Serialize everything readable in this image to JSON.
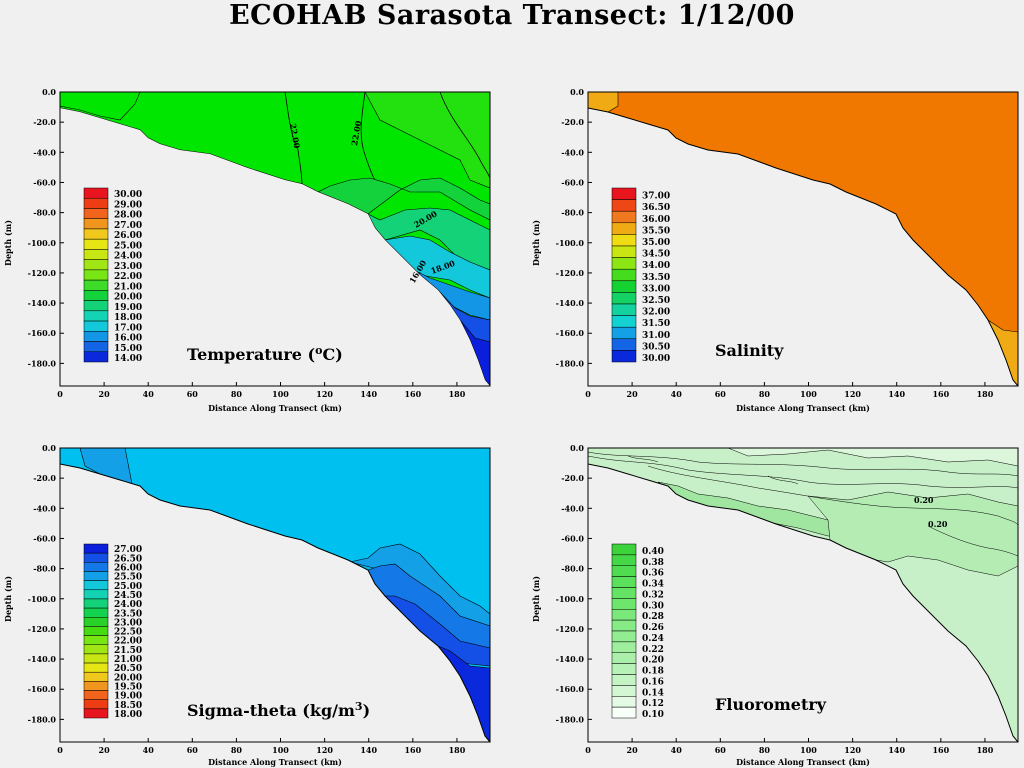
{
  "title": "ECOHAB Sarasota Transect: 1/12/00",
  "chart_data": [
    {
      "type": "heatmap",
      "title": "Temperature (oC)",
      "title_main": "Temperature (",
      "title_sup": "o",
      "title_tail": "C)",
      "xlabel": "Distance Along Transect (km)",
      "ylabel": "Depth (m)",
      "xlim": [
        0,
        195
      ],
      "ylim": [
        -195,
        0
      ],
      "xticks": [
        "0",
        "20",
        "40",
        "60",
        "80",
        "100",
        "120",
        "140",
        "160",
        "180"
      ],
      "yticks": [
        "0.0",
        "-20.0",
        "-40.0",
        "-60.0",
        "-80.0",
        "-100.0",
        "-120.0",
        "-140.0",
        "-160.0",
        "-180.0"
      ],
      "legend_levels": [
        "30.00",
        "29.00",
        "28.00",
        "27.00",
        "26.00",
        "25.00",
        "24.00",
        "23.00",
        "22.00",
        "21.00",
        "20.00",
        "19.00",
        "18.00",
        "17.00",
        "16.00",
        "15.00",
        "14.00"
      ],
      "legend_colors": [
        "#e8141e",
        "#ee3c14",
        "#f0641e",
        "#f0961e",
        "#f0c81e",
        "#e6e614",
        "#c8e614",
        "#a0e614",
        "#78e614",
        "#3cdc28",
        "#14d23c",
        "#14d278",
        "#14d2b4",
        "#14c8dc",
        "#1496e6",
        "#1464e6",
        "#0a28dc"
      ],
      "contour_labels": [
        "22.00",
        "22.00",
        "20.00",
        "18.00",
        "16.00"
      ],
      "colors": {
        "base": "#00e600",
        "light": "#78e632",
        "mid": "#14c83c",
        "cyan": "#14d2a0",
        "blue1": "#14a0e6",
        "blue2": "#1450e6",
        "blue3": "#0a1edc"
      }
    },
    {
      "type": "heatmap",
      "title": "Salinity",
      "xlabel": "Distance Along Transect (km)",
      "ylabel": "Depth (m)",
      "xlim": [
        0,
        195
      ],
      "ylim": [
        -195,
        0
      ],
      "xticks": [
        "0",
        "20",
        "40",
        "60",
        "80",
        "100",
        "120",
        "140",
        "160",
        "180"
      ],
      "yticks": [
        "0.0",
        "-20.0",
        "-40.0",
        "-60.0",
        "-80.0",
        "-100.0",
        "-120.0",
        "-140.0",
        "-160.0",
        "-180.0"
      ],
      "legend_levels": [
        "37.00",
        "36.50",
        "36.00",
        "35.50",
        "35.00",
        "34.50",
        "34.00",
        "33.50",
        "33.00",
        "32.50",
        "32.00",
        "31.50",
        "31.00",
        "30.50",
        "30.00"
      ],
      "legend_colors": [
        "#e8141e",
        "#ee4614",
        "#f0781e",
        "#f0aa14",
        "#f0dc14",
        "#c8e614",
        "#8ce614",
        "#46dc1e",
        "#14d232",
        "#14d264",
        "#14d2a0",
        "#14d2d2",
        "#14a0e6",
        "#1464e6",
        "#0a28dc"
      ],
      "colors": {
        "base": "#f07800",
        "edge": "#f0aa14"
      }
    },
    {
      "type": "heatmap",
      "title": "Sigma-theta (kg/m3)",
      "title_main": "Sigma-theta  (kg/m",
      "title_sup": "3",
      "title_tail": ")",
      "xlabel": "Distance Along Transect (km)",
      "ylabel": "Depth (m)",
      "xlim": [
        0,
        195
      ],
      "ylim": [
        -195,
        0
      ],
      "xticks": [
        "0",
        "20",
        "40",
        "60",
        "80",
        "100",
        "120",
        "140",
        "160",
        "180"
      ],
      "yticks": [
        "0.0",
        "-20.0",
        "-40.0",
        "-60.0",
        "-80.0",
        "-100.0",
        "-120.0",
        "-140.0",
        "-160.0",
        "-180.0"
      ],
      "legend_levels": [
        "27.00",
        "26.50",
        "26.00",
        "25.50",
        "25.00",
        "24.50",
        "24.00",
        "23.50",
        "23.00",
        "22.50",
        "22.00",
        "21.50",
        "21.00",
        "20.50",
        "20.00",
        "19.50",
        "19.00",
        "18.50",
        "18.00"
      ],
      "legend_colors": [
        "#0a1edc",
        "#1450e6",
        "#1478e6",
        "#14a0e6",
        "#14c8dc",
        "#14d2b4",
        "#14d278",
        "#14d250",
        "#28d228",
        "#46dc14",
        "#78e614",
        "#a0e614",
        "#c8e614",
        "#e6e614",
        "#f0c81e",
        "#f0961e",
        "#f0641e",
        "#ee3c14",
        "#e8141e"
      ],
      "colors": {
        "base": "#00c0f0",
        "mid": "#14a0e6",
        "deep1": "#1478e6",
        "deep2": "#1450e6",
        "deep3": "#0a28dc"
      }
    },
    {
      "type": "heatmap",
      "title": "Fluorometry",
      "xlabel": "Distance Along Transect (km)",
      "ylabel": "Depth (m)",
      "xlim": [
        0,
        195
      ],
      "ylim": [
        -195,
        0
      ],
      "xticks": [
        "0",
        "20",
        "40",
        "60",
        "80",
        "100",
        "120",
        "140",
        "160",
        "180"
      ],
      "yticks": [
        "0.0",
        "-20.0",
        "-40.0",
        "-60.0",
        "-80.0",
        "-100.0",
        "-120.0",
        "-140.0",
        "-160.0",
        "-180.0"
      ],
      "legend_levels": [
        "0.40",
        "0.38",
        "0.36",
        "0.34",
        "0.32",
        "0.30",
        "0.28",
        "0.26",
        "0.24",
        "0.22",
        "0.20",
        "0.18",
        "0.16",
        "0.14",
        "0.12",
        "0.10"
      ],
      "legend_colors": [
        "#3cd23c",
        "#46d746",
        "#50dc50",
        "#5ae05a",
        "#64e364",
        "#6ee66e",
        "#7ae87a",
        "#86ea86",
        "#92ec92",
        "#9eee9e",
        "#aaf0aa",
        "#b6f2b6",
        "#c4f4c4",
        "#d2f7d2",
        "#e4fae4",
        "#f8fff8"
      ],
      "contour_labels": [
        "0.20",
        "0.20"
      ],
      "colors": {
        "base": "#c8f0c8",
        "light": "#dcf6dc",
        "dark": "#a0e6a0"
      }
    }
  ]
}
